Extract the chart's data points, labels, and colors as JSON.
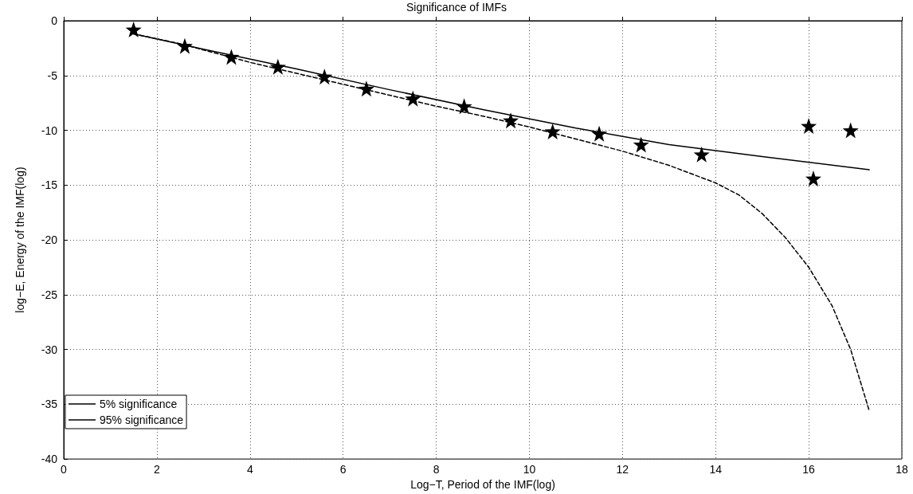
{
  "chart_data": {
    "type": "scatter",
    "title": "Significance of IMFs",
    "xlabel": "Log−T, Period of the IMF(log)",
    "ylabel": "log−E, Energy of the IMF(log)",
    "xlim": [
      0,
      18
    ],
    "xticks": [
      0,
      2,
      4,
      6,
      8,
      10,
      12,
      14,
      16,
      18
    ],
    "ylim": [
      -40,
      0
    ],
    "yticks": [
      -40,
      -35,
      -30,
      -25,
      -20,
      -15,
      -10,
      -5,
      0
    ],
    "grid": true,
    "legend": "bottom left",
    "series": [
      {
        "type": "line",
        "name": "5% significance",
        "color": "#000000",
        "line_style": "dashed",
        "marker": "none",
        "x": [
          1.5,
          2.5,
          4,
          5,
          6,
          7,
          8,
          9,
          10,
          11,
          12,
          13,
          14,
          14.5,
          15,
          15.5,
          16,
          16.5,
          16.9,
          17.3
        ],
        "values": [
          -1.2,
          -2.1,
          -3.8,
          -4.8,
          -5.8,
          -6.8,
          -7.8,
          -8.7,
          -9.7,
          -10.8,
          -11.9,
          -13.2,
          -14.8,
          -15.9,
          -17.6,
          -19.8,
          -22.5,
          -26,
          -30,
          -35.6
        ]
      },
      {
        "type": "line",
        "name": "95% significance",
        "color": "#000000",
        "line_style": "solid",
        "marker": "none",
        "x": [
          1.5,
          3,
          5,
          7,
          9,
          11,
          13,
          15,
          17.3
        ],
        "values": [
          -1.2,
          -2.6,
          -4.4,
          -6.3,
          -8.1,
          -9.8,
          -11.3,
          -12.4,
          -13.6
        ]
      },
      {
        "color": "#000000",
        "marker": "star",
        "x": [
          1.5,
          2.6,
          3.6,
          4.6,
          5.6,
          6.5,
          7.5,
          8.6,
          9.6,
          10.5,
          11.5,
          12.4,
          13.7,
          16.0,
          16.1,
          16.9
        ],
        "values": [
          -0.8,
          -2.3,
          -3.3,
          -4.2,
          -5.1,
          -6.2,
          -7.1,
          -7.8,
          -9.1,
          -10.1,
          -10.3,
          -11.3,
          -12.2,
          -9.6,
          -14.4,
          -10.0
        ]
      }
    ]
  }
}
